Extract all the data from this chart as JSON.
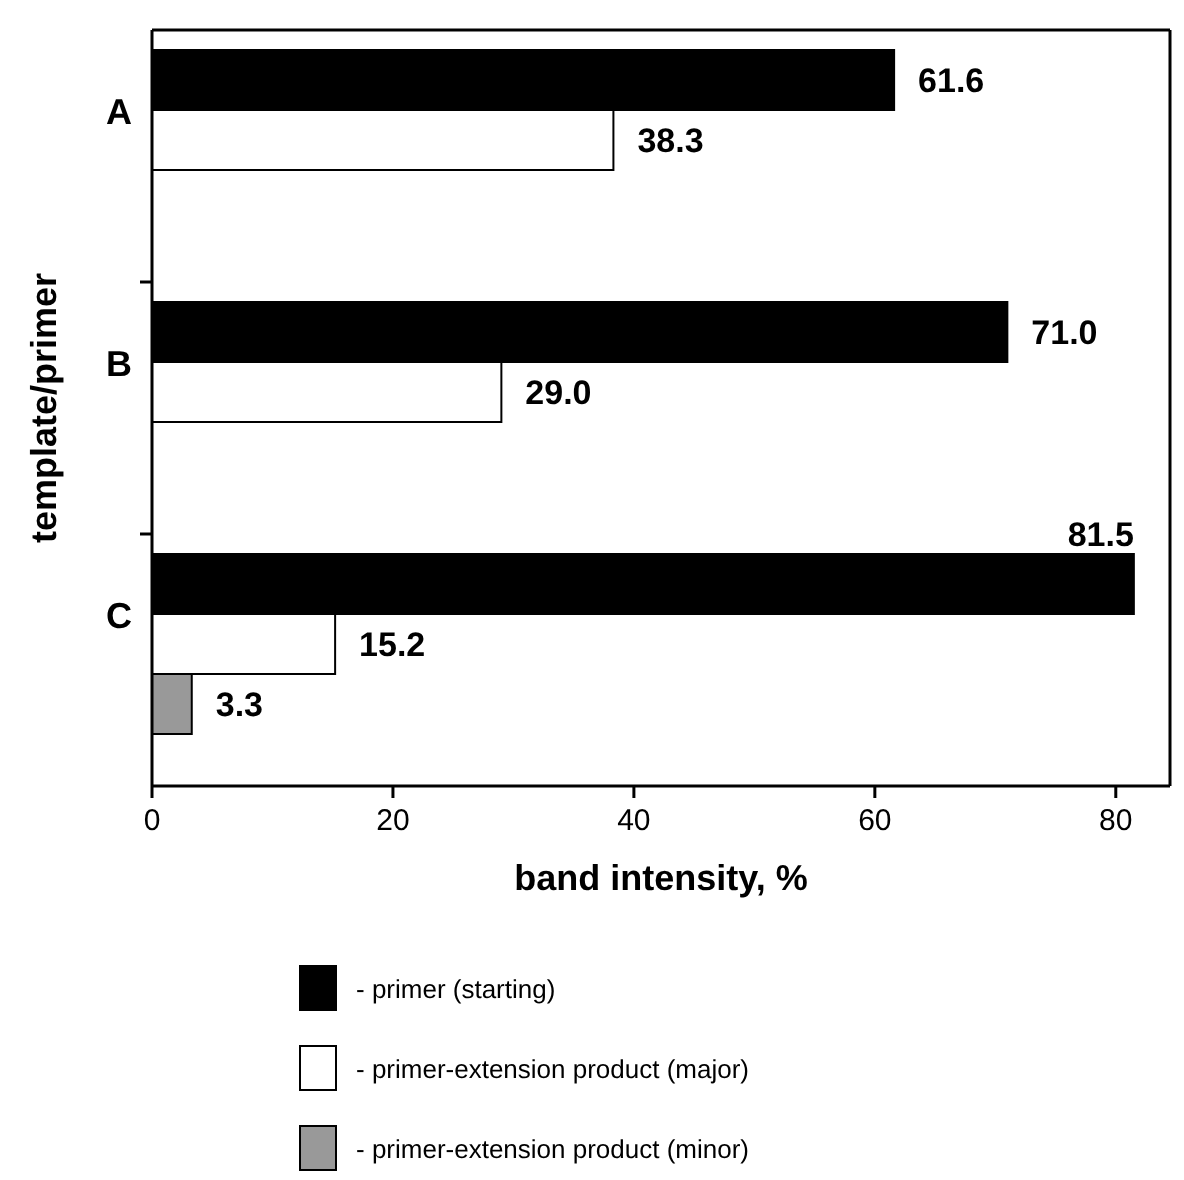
{
  "chart_data": {
    "type": "bar",
    "orientation": "horizontal",
    "xlabel": "band intensity, %",
    "ylabel": "template/primer",
    "categories": [
      "A",
      "B",
      "C"
    ],
    "series": [
      {
        "name": "- primer (starting)",
        "color": "#000000",
        "values": [
          61.6,
          71.0,
          81.5
        ],
        "value_labels": [
          "61.6",
          "71.0",
          "81.5"
        ]
      },
      {
        "name": "- primer-extension product (major)",
        "color": "#ffffff",
        "values": [
          38.3,
          29.0,
          15.2
        ],
        "value_labels": [
          "38.3",
          "29.0",
          "15.2"
        ]
      },
      {
        "name": "- primer-extension product (minor)",
        "color": "#999999",
        "values": [
          null,
          null,
          3.3
        ],
        "value_labels": [
          null,
          null,
          "3.3"
        ]
      }
    ],
    "xlim": [
      0,
      84.5
    ],
    "xticks": [
      0,
      20,
      40,
      60,
      80
    ],
    "grid": false,
    "legend": "bottom"
  }
}
